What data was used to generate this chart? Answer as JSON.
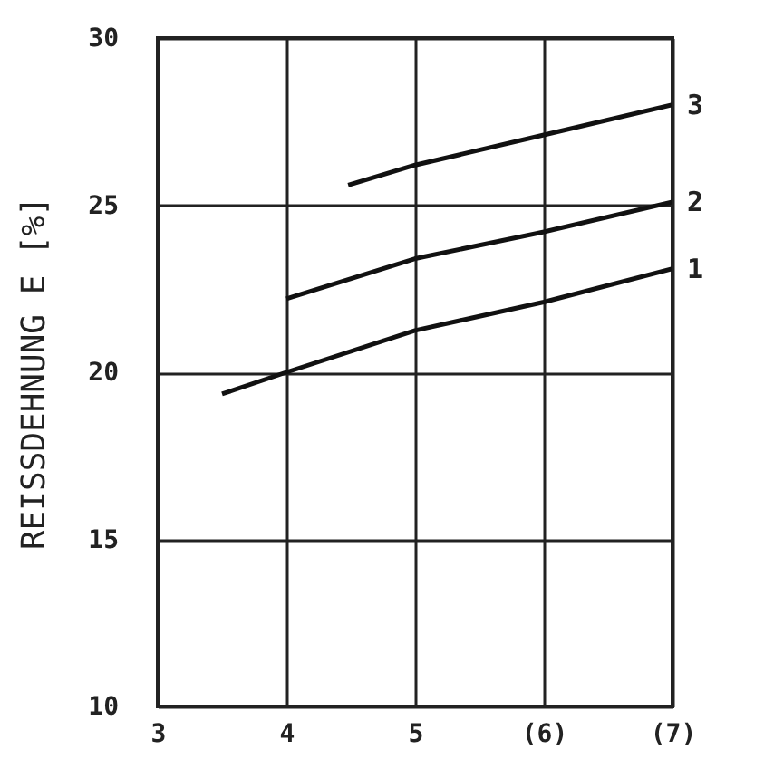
{
  "chart_data": {
    "type": "line",
    "ylabel": "REISSDEHNUNG E   [%]",
    "xlim": [
      3,
      7
    ],
    "xticks": [
      3,
      4,
      5,
      {
        "value": 6,
        "label": "(6)"
      },
      {
        "value": 7,
        "label": "(7)"
      }
    ],
    "ylim": [
      10,
      30
    ],
    "yticks": [
      10,
      15,
      20,
      25,
      30
    ],
    "grid": true,
    "legend": false,
    "marker": "none",
    "line_style": "solid",
    "series": [
      {
        "name": "1",
        "color": "#111111",
        "x": [
          3.5,
          4,
          5,
          6,
          7
        ],
        "values": [
          19.35,
          20,
          21.25,
          22.1,
          23.1
        ]
      },
      {
        "name": "2",
        "color": "#111111",
        "x": [
          4,
          5,
          6,
          7
        ],
        "values": [
          22.2,
          23.4,
          24.2,
          25.1
        ]
      },
      {
        "name": "3",
        "color": "#111111",
        "x": [
          4.48,
          5,
          6,
          7
        ],
        "values": [
          25.6,
          26.2,
          27.1,
          28.0
        ]
      }
    ]
  }
}
